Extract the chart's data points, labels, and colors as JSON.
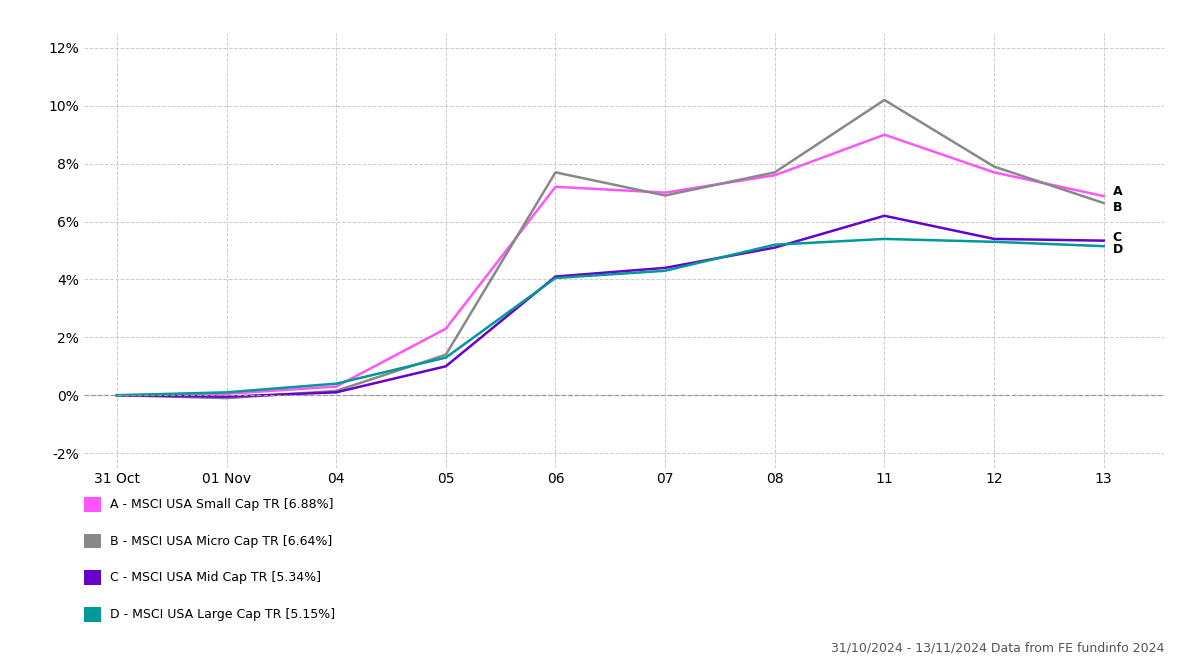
{
  "title": "",
  "x_labels": [
    "31 Oct",
    "01 Nov",
    "04",
    "05",
    "06",
    "07",
    "08",
    "11",
    "12",
    "13"
  ],
  "x_positions": [
    0,
    1,
    2,
    3,
    4,
    5,
    6,
    7,
    8,
    9
  ],
  "series": {
    "A": {
      "label": "A - MSCI USA Small Cap TR [6.88%]",
      "color": "#ff55ff",
      "values": [
        0.0,
        0.05,
        0.3,
        2.3,
        7.2,
        7.0,
        7.6,
        9.0,
        7.7,
        6.88
      ]
    },
    "B": {
      "label": "B - MSCI USA Micro Cap TR [6.64%]",
      "color": "#888888",
      "values": [
        0.0,
        -0.1,
        0.15,
        1.4,
        7.7,
        6.9,
        7.7,
        10.2,
        7.9,
        6.64
      ]
    },
    "C": {
      "label": "C - MSCI USA Mid Cap TR [5.34%]",
      "color": "#6600cc",
      "values": [
        0.0,
        -0.05,
        0.1,
        1.0,
        4.1,
        4.4,
        5.1,
        6.2,
        5.4,
        5.34
      ]
    },
    "D": {
      "label": "D - MSCI USA Large Cap TR [5.15%]",
      "color": "#009999",
      "values": [
        0.0,
        0.1,
        0.4,
        1.3,
        4.05,
        4.3,
        5.2,
        5.4,
        5.3,
        5.15
      ]
    }
  },
  "ylim": [
    -2.5,
    12.5
  ],
  "yticks": [
    -2,
    0,
    2,
    4,
    6,
    8,
    10,
    12
  ],
  "ytick_labels": [
    "-2%",
    "0%",
    "2%",
    "4%",
    "6%",
    "8%",
    "10%",
    "12%"
  ],
  "footnote": "31/10/2024 - 13/11/2024 Data from FE fundinfo 2024",
  "background_color": "#ffffff",
  "grid_color": "#cccccc",
  "tick_fontsize": 10,
  "series_label_fontsize": 9,
  "footnote_fontsize": 9,
  "label_y_adjust": {
    "A": 0.15,
    "B": -0.15,
    "C": 0.12,
    "D": -0.12
  }
}
